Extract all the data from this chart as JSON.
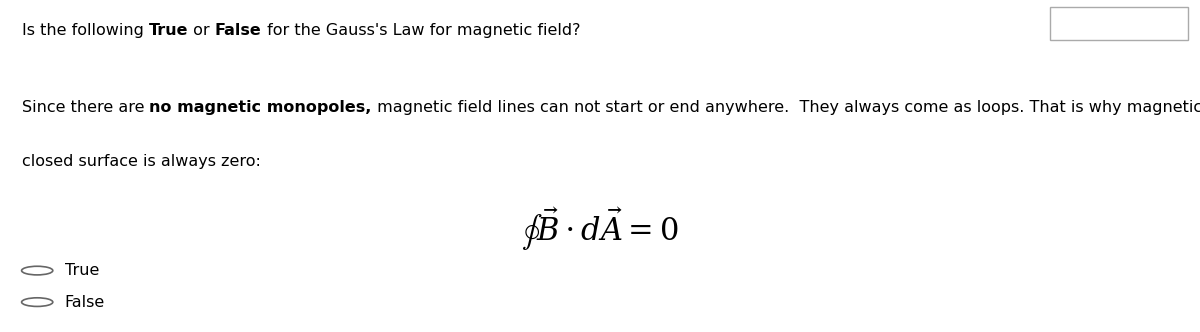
{
  "background_color": "#ffffff",
  "title_line": "Is the following ",
  "title_bold1": "True",
  "title_mid": " or ",
  "title_bold2": "False",
  "title_end": " for the Gauss's Law for magnetic field?",
  "body_start": "Since there are ",
  "body_bold": "no magnetic monopoles,",
  "body_rest_line1": " magnetic field lines can not start or end anywhere.  They always come as loops. That is why magnetic flux through a",
  "body_line2": "closed surface is always zero:",
  "equation": "\\oint \\vec{B} \\cdot d\\vec{A} = 0",
  "option1": "True",
  "option2": "False",
  "text_color": "#000000",
  "font_size_title": 11.5,
  "font_size_body": 11.5,
  "font_size_equation": 22,
  "font_size_options": 11.5
}
